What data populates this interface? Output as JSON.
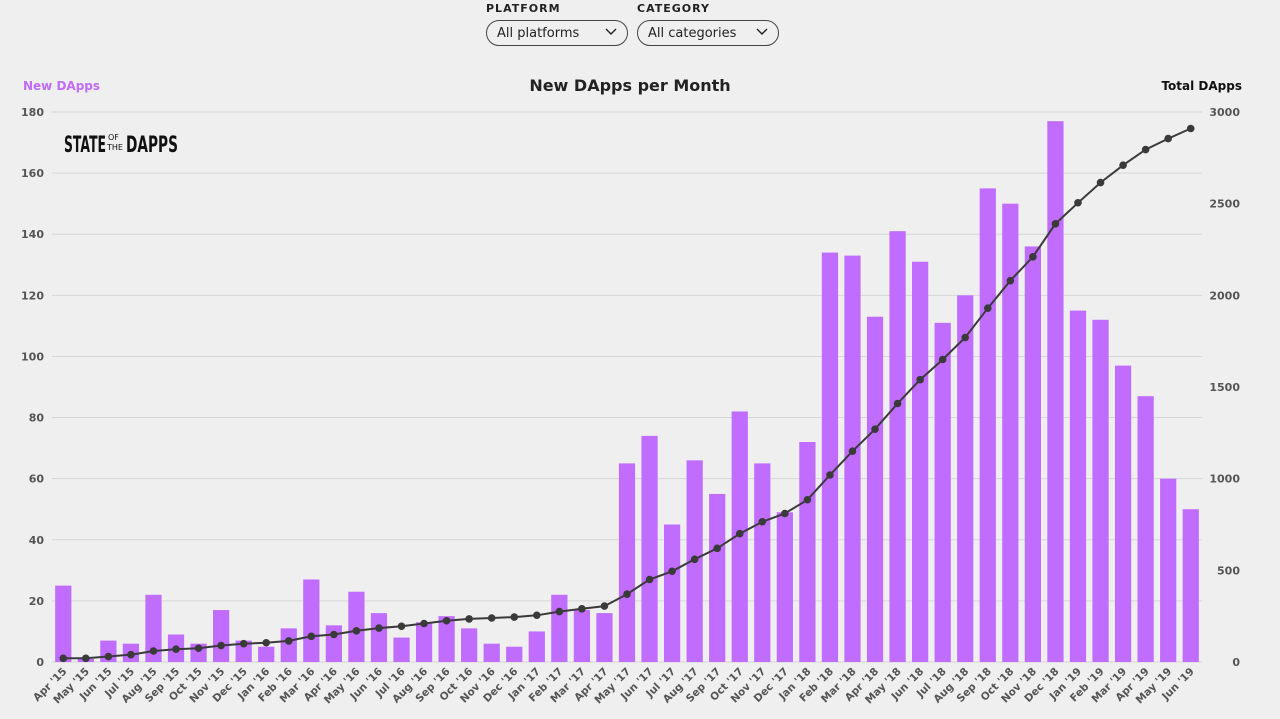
{
  "filters": {
    "platform": {
      "label": "PLATFORM",
      "value": "All platforms"
    },
    "category": {
      "label": "CATEGORY",
      "value": "All categories"
    }
  },
  "logo": {
    "line1": "STATE",
    "of": "OF",
    "the": "THE",
    "line2": "DAPPS"
  },
  "colors": {
    "bar": "#c06cff",
    "line": "#3a3a3a",
    "left_axis_title": "#c06cff"
  },
  "chart_data": {
    "type": "bar",
    "title": "New DApps per Month",
    "ylabel": "New DApps",
    "y2label": "Total DApps",
    "ylim": [
      0,
      180
    ],
    "y2lim": [
      0,
      3000
    ],
    "yticks": [
      0,
      20,
      40,
      60,
      80,
      100,
      120,
      140,
      160,
      180
    ],
    "y2ticks": [
      0,
      500,
      1000,
      1500,
      2000,
      2500,
      3000
    ],
    "grid": true,
    "categories": [
      "Apr '15",
      "May '15",
      "Jun '15",
      "Jul '15",
      "Aug '15",
      "Sep '15",
      "Oct '15",
      "Nov '15",
      "Dec '15",
      "Jan '16",
      "Feb '16",
      "Mar '16",
      "Apr '16",
      "May '16",
      "Jun '16",
      "Jul '16",
      "Aug '16",
      "Sep '16",
      "Oct '16",
      "Nov '16",
      "Dec '16",
      "Jan '17",
      "Feb '17",
      "Mar '17",
      "Apr '17",
      "May '17",
      "Jun '17",
      "Jul '17",
      "Aug '17",
      "Sep '17",
      "Oct '17",
      "Nov '17",
      "Dec '17",
      "Jan '18",
      "Feb '18",
      "Mar '18",
      "Apr '18",
      "May '18",
      "Jun '18",
      "Jul '18",
      "Aug '18",
      "Sep '18",
      "Oct '18",
      "Nov '18",
      "Dec '18",
      "Jan '19",
      "Feb '19",
      "Mar '19",
      "Apr '19",
      "May '19",
      "Jun '19"
    ],
    "series": [
      {
        "name": "New DApps",
        "type": "bar",
        "values": [
          25,
          1,
          7,
          6,
          22,
          9,
          6,
          17,
          7,
          5,
          11,
          27,
          12,
          23,
          16,
          8,
          13,
          15,
          11,
          6,
          5,
          10,
          22,
          17,
          16,
          65,
          74,
          45,
          66,
          55,
          82,
          65,
          49,
          72,
          134,
          133,
          113,
          141,
          131,
          111,
          120,
          155,
          150,
          136,
          177,
          115,
          112,
          97,
          87,
          60,
          50
        ]
      },
      {
        "name": "Total DApps",
        "type": "line",
        "values": [
          20,
          20,
          30,
          40,
          60,
          70,
          75,
          90,
          100,
          105,
          115,
          140,
          150,
          170,
          185,
          195,
          210,
          225,
          235,
          240,
          245,
          255,
          275,
          290,
          305,
          370,
          450,
          495,
          560,
          620,
          700,
          765,
          810,
          885,
          1020,
          1150,
          1270,
          1410,
          1540,
          1650,
          1770,
          1930,
          2080,
          2210,
          2390,
          2505,
          2615,
          2710,
          2795,
          2855,
          2910
        ]
      }
    ]
  }
}
